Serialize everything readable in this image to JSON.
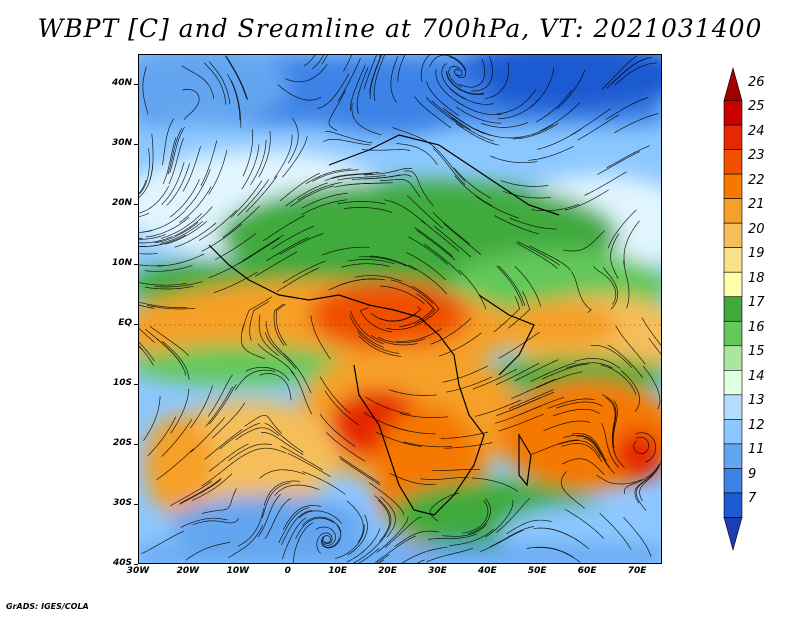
{
  "title": "WBPT [C] and Sreamline at 700hPa, VT: 2021031400",
  "footer": "GrADS: IGES/COLA",
  "map": {
    "lat_labels": [
      "40N",
      "30N",
      "20N",
      "10N",
      "EQ",
      "10S",
      "20S",
      "30S",
      "40S"
    ],
    "lat_values": [
      40,
      30,
      20,
      10,
      0,
      -10,
      -20,
      -30,
      -40
    ],
    "lon_labels": [
      "30W",
      "20W",
      "10W",
      "0",
      "10E",
      "20E",
      "30E",
      "40E",
      "50E",
      "60E",
      "70E"
    ],
    "lon_values": [
      -30,
      -20,
      -10,
      0,
      10,
      20,
      30,
      40,
      50,
      60,
      70
    ],
    "extent": {
      "lon_min": -30,
      "lon_max": 75,
      "lat_min": -40,
      "lat_max": 45
    }
  },
  "colorbar": {
    "labels": [
      "26",
      "25",
      "24",
      "23",
      "22",
      "21",
      "20",
      "19",
      "18",
      "17",
      "16",
      "15",
      "14",
      "13",
      "12",
      "11",
      "9",
      "7"
    ],
    "colors": [
      "#a50000",
      "#c80000",
      "#e62800",
      "#f05000",
      "#f57800",
      "#f5a028",
      "#f5be5a",
      "#fae18c",
      "#ffffaa",
      "#41aa3c",
      "#64c85a",
      "#aae6a0",
      "#e1ffe1",
      "#b4dcff",
      "#8cc8ff",
      "#64a5f0",
      "#3c82e6",
      "#1e5ad2",
      "#1e3cb4"
    ]
  },
  "colors": {
    "warm": "#f5a028",
    "hot": "#e64b1e",
    "green": "#41aa3c",
    "light_green": "#aae6a0",
    "pale": "#e1f5ff",
    "blue": "#64a5f0",
    "deep_blue": "#2850b4"
  }
}
